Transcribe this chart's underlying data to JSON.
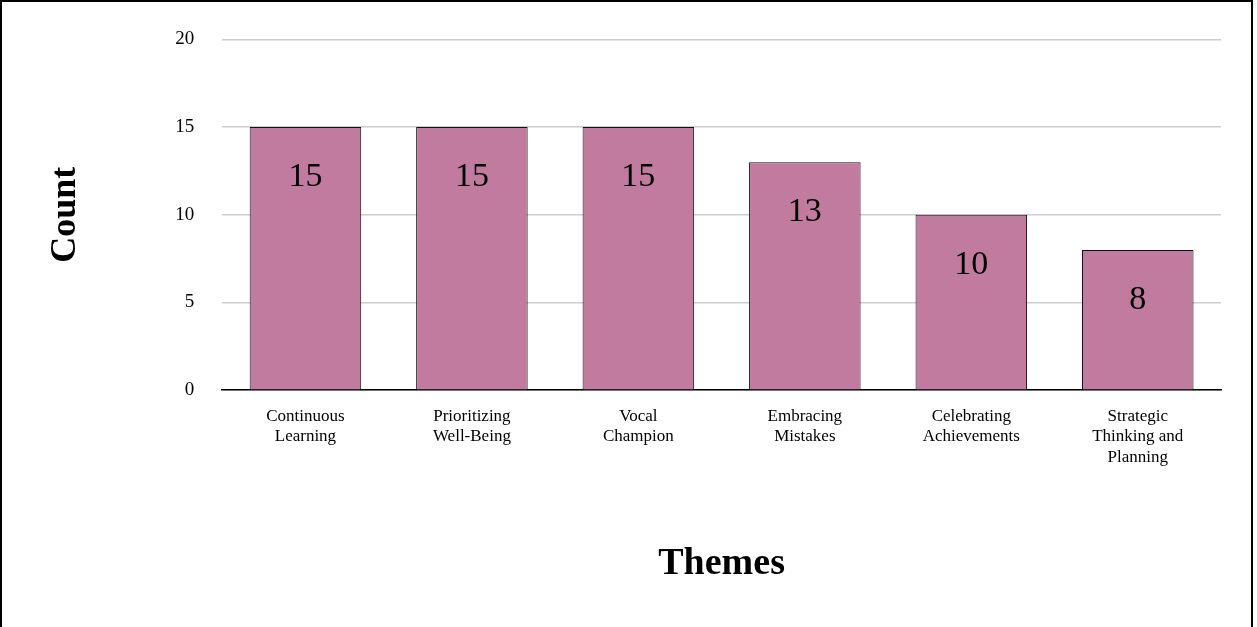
{
  "chart_data": {
    "type": "bar",
    "xlabel": "Themes",
    "ylabel": "Count",
    "categories": [
      "Continuous Learning",
      "Prioritizing Well-Being",
      "Vocal Champion",
      "Embracing Mistakes",
      "Celebrating Achievements",
      "Strategic Thinking and Planning"
    ],
    "values": [
      15,
      15,
      15,
      13,
      10,
      8
    ],
    "color": "#c07b9e",
    "ylim": [
      0,
      20
    ],
    "yticks": [
      0,
      5,
      10,
      15,
      20
    ],
    "grid": "y",
    "legend": false,
    "data_labels": true
  }
}
